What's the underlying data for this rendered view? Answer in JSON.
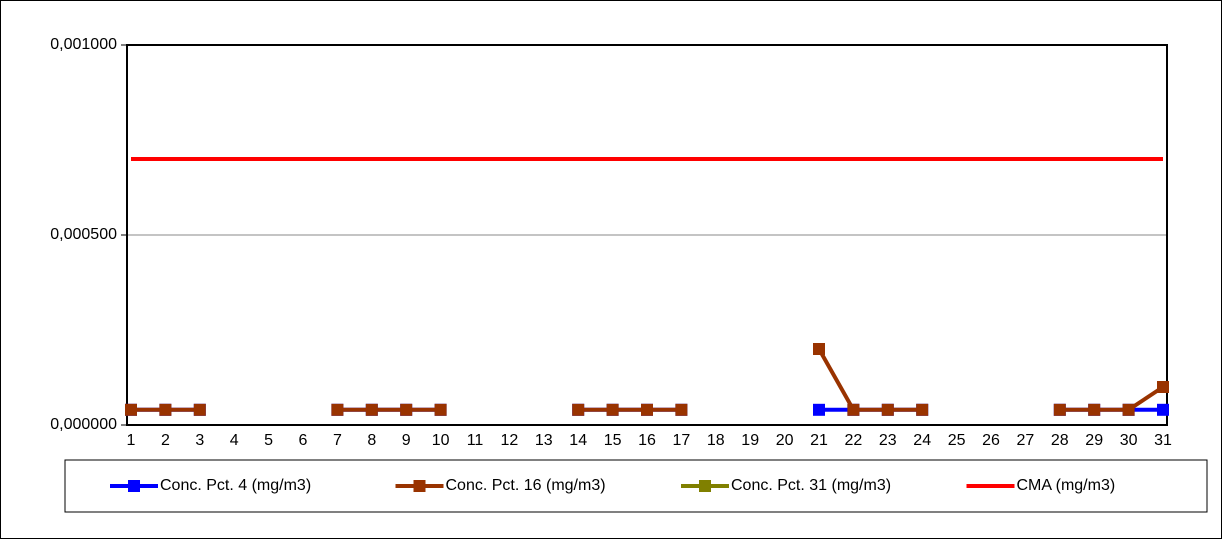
{
  "chart_data": {
    "type": "line",
    "categories": [
      "1",
      "2",
      "3",
      "4",
      "5",
      "6",
      "7",
      "8",
      "9",
      "10",
      "11",
      "12",
      "13",
      "14",
      "15",
      "16",
      "17",
      "18",
      "19",
      "20",
      "21",
      "22",
      "23",
      "24",
      "25",
      "26",
      "27",
      "28",
      "29",
      "30",
      "31"
    ],
    "series": [
      {
        "name": "Conc. Pct. 4 (mg/m3)",
        "color": "#0000ff",
        "marker": true,
        "values": [
          4e-05,
          4e-05,
          4e-05,
          null,
          null,
          null,
          4e-05,
          4e-05,
          4e-05,
          4e-05,
          null,
          null,
          null,
          4e-05,
          4e-05,
          4e-05,
          4e-05,
          null,
          null,
          null,
          4e-05,
          4e-05,
          4e-05,
          4e-05,
          null,
          null,
          null,
          4e-05,
          4e-05,
          4e-05,
          4e-05
        ]
      },
      {
        "name": "Conc. Pct. 16 (mg/m3)",
        "color": "#993300",
        "marker": true,
        "values": [
          4e-05,
          4e-05,
          4e-05,
          null,
          null,
          null,
          4e-05,
          4e-05,
          4e-05,
          4e-05,
          null,
          null,
          null,
          4e-05,
          4e-05,
          4e-05,
          4e-05,
          null,
          null,
          null,
          0.0002,
          4e-05,
          4e-05,
          4e-05,
          null,
          null,
          null,
          4e-05,
          4e-05,
          4e-05,
          0.0001
        ]
      },
      {
        "name": "Conc. Pct. 31 (mg/m3)",
        "color": "#808000",
        "marker": true,
        "values": [
          null,
          null,
          null,
          null,
          null,
          null,
          null,
          null,
          null,
          null,
          null,
          null,
          null,
          null,
          null,
          null,
          null,
          null,
          null,
          null,
          null,
          null,
          null,
          null,
          null,
          null,
          null,
          null,
          null,
          null,
          null
        ]
      },
      {
        "name": "CMA (mg/m3)",
        "color": "#ff0000",
        "marker": false,
        "values": [
          0.0007,
          0.0007,
          0.0007,
          0.0007,
          0.0007,
          0.0007,
          0.0007,
          0.0007,
          0.0007,
          0.0007,
          0.0007,
          0.0007,
          0.0007,
          0.0007,
          0.0007,
          0.0007,
          0.0007,
          0.0007,
          0.0007,
          0.0007,
          0.0007,
          0.0007,
          0.0007,
          0.0007,
          0.0007,
          0.0007,
          0.0007,
          0.0007,
          0.0007,
          0.0007,
          0.0007
        ]
      }
    ],
    "ylim": [
      0,
      0.001
    ],
    "yticks": [
      {
        "value": 0,
        "label": "0,000000"
      },
      {
        "value": 0.0005,
        "label": "0,000500"
      },
      {
        "value": 0.001,
        "label": "0,001000"
      }
    ],
    "grid": true,
    "legend": "bottom"
  }
}
